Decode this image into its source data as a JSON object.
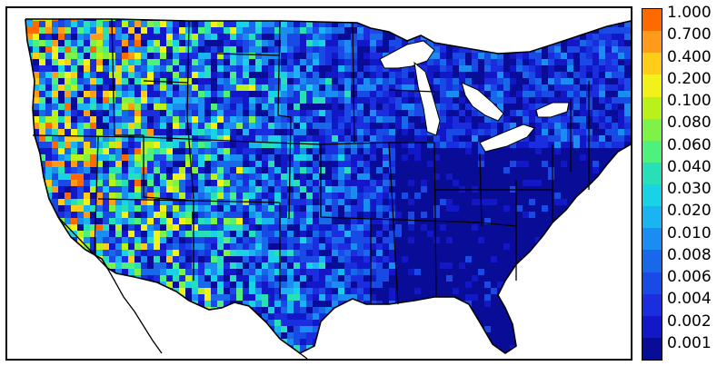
{
  "colorbar": {
    "labels": [
      "1.000",
      "0.700",
      "0.400",
      "0.200",
      "0.100",
      "0.080",
      "0.060",
      "0.040",
      "0.030",
      "0.020",
      "0.010",
      "0.008",
      "0.006",
      "0.004",
      "0.002",
      "0.001"
    ],
    "colors": [
      "#ff6a00",
      "#ff9a1a",
      "#ffcc1a",
      "#f2f21a",
      "#b8f21a",
      "#7ef248",
      "#4ef07e",
      "#28e0b8",
      "#1ad2e6",
      "#1ab4f2",
      "#1a8cf2",
      "#1a68ea",
      "#1a4ae6",
      "#1a2ee0",
      "#1218c8",
      "#080c96"
    ]
  },
  "map": {
    "ocean_color": "#ffffff",
    "lakes_color": "#ffffff",
    "border_color": "#000000",
    "dominant_color": "#1a2ee0"
  }
}
